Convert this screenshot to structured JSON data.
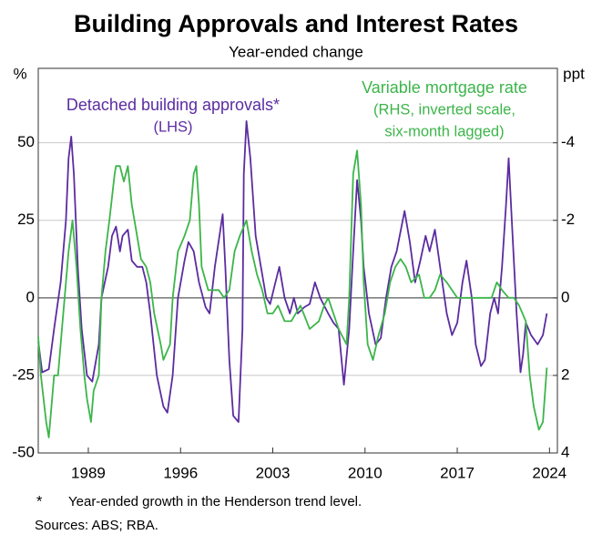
{
  "chart_data": {
    "type": "line",
    "title": "Building Approvals and Interest Rates",
    "subtitle": "Year-ended change",
    "ylabel": "%",
    "y2label": "ppt",
    "y2_inverted": true,
    "xlim": [
      1985.2,
      2024.6
    ],
    "xticks": [
      1989,
      1996,
      2003,
      2010,
      2017,
      2024
    ],
    "ylim": [
      -50,
      74
    ],
    "yticks": [
      -50,
      -25,
      0,
      25,
      50
    ],
    "y2lim": [
      4,
      -5.92
    ],
    "y2ticks": [
      4,
      2,
      0,
      -2,
      -4
    ],
    "grid": true,
    "series": [
      {
        "name": "Detached building approvals*",
        "sublabel": [
          "(LHS)"
        ],
        "color": "#5b2ca0",
        "axis": "y",
        "x": [
          1985.2,
          1985.5,
          1986.0,
          1986.4,
          1986.9,
          1987.3,
          1987.5,
          1987.7,
          1987.9,
          1988.2,
          1988.5,
          1988.9,
          1989.3,
          1989.8,
          1990.0,
          1990.5,
          1990.8,
          1991.1,
          1991.4,
          1991.6,
          1992.0,
          1992.3,
          1992.7,
          1993.1,
          1993.4,
          1993.7,
          1994.2,
          1994.7,
          1995.0,
          1995.4,
          1995.8,
          1996.3,
          1996.6,
          1997.0,
          1997.4,
          1997.9,
          1998.2,
          1998.6,
          1999.2,
          1999.4,
          1999.7,
          2000.0,
          2000.4,
          2000.7,
          2000.8,
          2001.0,
          2001.3,
          2001.7,
          2002.1,
          2002.5,
          2002.8,
          2003.2,
          2003.5,
          2003.9,
          2004.3,
          2004.6,
          2004.9,
          2005.4,
          2005.8,
          2006.2,
          2006.6,
          2007.2,
          2007.6,
          2008.0,
          2008.4,
          2008.8,
          2009.1,
          2009.4,
          2009.7,
          2009.9,
          2010.3,
          2010.8,
          2011.2,
          2011.6,
          2012.0,
          2012.4,
          2013.0,
          2013.4,
          2013.8,
          2014.2,
          2014.6,
          2014.9,
          2015.3,
          2015.7,
          2016.2,
          2016.6,
          2017.0,
          2017.4,
          2017.7,
          2018.1,
          2018.4,
          2018.8,
          2019.1,
          2019.5,
          2019.8,
          2020.1,
          2020.4,
          2020.7,
          2020.9,
          2021.2,
          2021.5,
          2021.8,
          2022.0,
          2022.2,
          2022.6,
          2023.1,
          2023.5,
          2023.8
        ],
        "values": [
          -14,
          -24,
          -23,
          -10,
          5,
          25,
          45,
          52,
          40,
          10,
          -10,
          -25,
          -27,
          -15,
          0,
          10,
          20,
          23,
          15,
          20,
          22,
          12,
          10,
          10,
          5,
          -5,
          -25,
          -35,
          -37,
          -25,
          0,
          12,
          18,
          15,
          5,
          -3,
          -5,
          10,
          27,
          10,
          -20,
          -38,
          -40,
          -10,
          40,
          57,
          45,
          20,
          10,
          0,
          -2,
          5,
          10,
          0,
          -5,
          0,
          -5,
          -3,
          -2,
          5,
          0,
          -5,
          -8,
          -10,
          -28,
          -10,
          15,
          38,
          25,
          10,
          -5,
          -15,
          -13,
          0,
          10,
          15,
          28,
          18,
          5,
          12,
          20,
          15,
          22,
          10,
          -5,
          -12,
          -8,
          5,
          12,
          0,
          -15,
          -22,
          -20,
          -5,
          0,
          -5,
          10,
          30,
          45,
          20,
          -5,
          -24,
          -18,
          -8,
          -12,
          -15,
          -12,
          -5
        ]
      },
      {
        "name": "Variable mortgage rate",
        "sublabel": [
          "(RHS, inverted scale,",
          "six-month lagged)"
        ],
        "color": "#3cb54a",
        "axis": "y2",
        "x": [
          1985.2,
          1985.4,
          1985.8,
          1986.0,
          1986.2,
          1986.4,
          1986.7,
          1987.0,
          1987.3,
          1987.5,
          1987.8,
          1988.1,
          1988.4,
          1988.7,
          1988.9,
          1989.2,
          1989.4,
          1989.8,
          1990.0,
          1990.3,
          1990.6,
          1991.0,
          1991.1,
          1991.4,
          1991.7,
          1992.0,
          1992.3,
          1992.7,
          1993.0,
          1993.4,
          1993.7,
          1994.0,
          1994.5,
          1994.7,
          1995.2,
          1995.4,
          1995.8,
          1996.3,
          1996.7,
          1997.0,
          1997.2,
          1997.4,
          1997.6,
          1998.1,
          1998.5,
          1998.9,
          1999.3,
          1999.7,
          2000.1,
          2000.5,
          2001.0,
          2001.4,
          2001.8,
          2002.2,
          2002.6,
          2003.0,
          2003.4,
          2003.9,
          2004.4,
          2005.1,
          2005.8,
          2006.5,
          2006.9,
          2007.2,
          2007.6,
          2008.0,
          2008.6,
          2008.8,
          2009.1,
          2009.4,
          2009.7,
          2009.9,
          2010.2,
          2010.6,
          2011.0,
          2011.5,
          2011.9,
          2012.3,
          2012.7,
          2013.1,
          2013.5,
          2014.1,
          2014.5,
          2014.9,
          2015.3,
          2015.7,
          2016.2,
          2016.6,
          2017.0,
          2017.5,
          2018.2,
          2018.9,
          2019.6,
          2020.0,
          2020.4,
          2020.9,
          2021.3,
          2021.7,
          2022.2,
          2022.5,
          2022.8,
          2023.2,
          2023.5,
          2023.8
        ],
        "values": [
          1.0,
          2.0,
          3.2,
          3.6,
          2.8,
          2.0,
          2.0,
          0.8,
          -0.4,
          -1.2,
          -2.0,
          -0.8,
          0.8,
          2.0,
          2.6,
          3.2,
          2.4,
          2.0,
          0,
          -1.2,
          -2.0,
          -3.2,
          -3.4,
          -3.4,
          -3.0,
          -3.4,
          -2.4,
          -1.6,
          -1.0,
          -0.8,
          -0.4,
          0.4,
          1.2,
          1.6,
          1.2,
          0,
          -1.2,
          -1.6,
          -2.0,
          -3.2,
          -3.4,
          -2.4,
          -0.8,
          -0.2,
          -0.2,
          -0.2,
          0,
          -0.2,
          -1.2,
          -1.6,
          -2.0,
          -1.2,
          -0.6,
          -0.2,
          0.4,
          0.4,
          0.2,
          0.6,
          0.6,
          0.2,
          0.8,
          0.6,
          0.2,
          0,
          0.4,
          0.8,
          1.2,
          0,
          -3.2,
          -3.8,
          -2.4,
          -0.4,
          1.2,
          1.6,
          1.0,
          0.4,
          -0.4,
          -0.8,
          -1.0,
          -0.8,
          -0.4,
          -0.6,
          0,
          0,
          -0.2,
          -0.6,
          -0.4,
          -0.2,
          0,
          0,
          0,
          0,
          0,
          -0.4,
          -0.2,
          0,
          0,
          0.2,
          0.6,
          2.0,
          2.8,
          3.4,
          3.2,
          1.8
        ]
      }
    ],
    "footnote_marker": "*",
    "footnote": "Year-ended growth in the Henderson trend level.",
    "sources": "Sources: ABS; RBA."
  }
}
